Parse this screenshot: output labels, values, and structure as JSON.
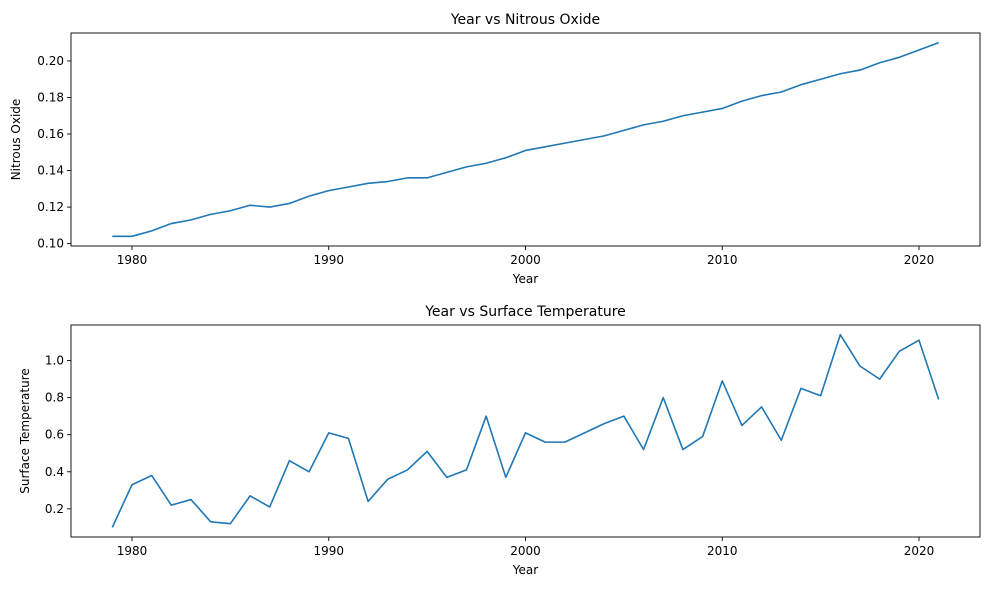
{
  "chart_data": [
    {
      "type": "line",
      "title": "Year vs Nitrous Oxide",
      "xlabel": "Year",
      "ylabel": "Nitrous Oxide",
      "xlim": [
        1976.9,
        2023.1
      ],
      "ylim": [
        0.0987,
        0.2153
      ],
      "xticks": [
        1980,
        1990,
        2000,
        2010,
        2020
      ],
      "yticks": [
        0.1,
        0.12,
        0.14,
        0.16,
        0.18,
        0.2
      ],
      "ytick_labels": [
        "0.10",
        "0.12",
        "0.14",
        "0.16",
        "0.18",
        "0.20"
      ],
      "grid": false,
      "color": "#1f77b4",
      "x": [
        1979,
        1980,
        1981,
        1982,
        1983,
        1984,
        1985,
        1986,
        1987,
        1988,
        1989,
        1990,
        1991,
        1992,
        1993,
        1994,
        1995,
        1996,
        1997,
        1998,
        1999,
        2000,
        2001,
        2002,
        2003,
        2004,
        2005,
        2006,
        2007,
        2008,
        2009,
        2010,
        2011,
        2012,
        2013,
        2014,
        2015,
        2016,
        2017,
        2018,
        2019,
        2020,
        2021
      ],
      "y": [
        0.104,
        0.104,
        0.107,
        0.111,
        0.113,
        0.116,
        0.118,
        0.121,
        0.12,
        0.122,
        0.126,
        0.129,
        0.131,
        0.133,
        0.134,
        0.136,
        0.136,
        0.139,
        0.142,
        0.144,
        0.147,
        0.151,
        0.153,
        0.155,
        0.157,
        0.159,
        0.162,
        0.165,
        0.167,
        0.17,
        0.172,
        0.174,
        0.178,
        0.181,
        0.183,
        0.187,
        0.19,
        0.193,
        0.195,
        0.199,
        0.202,
        0.206,
        0.21
      ]
    },
    {
      "type": "line",
      "title": "Year vs Surface Temperature",
      "xlabel": "Year",
      "ylabel": "Surface Temperature",
      "xlim": [
        1976.9,
        2023.1
      ],
      "ylim": [
        0.048,
        1.192
      ],
      "xticks": [
        1980,
        1990,
        2000,
        2010,
        2020
      ],
      "yticks": [
        0.2,
        0.4,
        0.6,
        0.8,
        1.0
      ],
      "ytick_labels": [
        "0.2",
        "0.4",
        "0.6",
        "0.8",
        "1.0"
      ],
      "grid": false,
      "color": "#1f77b4",
      "x": [
        1979,
        1980,
        1981,
        1982,
        1983,
        1984,
        1985,
        1986,
        1987,
        1988,
        1989,
        1990,
        1991,
        1992,
        1993,
        1994,
        1995,
        1996,
        1997,
        1998,
        1999,
        2000,
        2001,
        2002,
        2003,
        2004,
        2005,
        2006,
        2007,
        2008,
        2009,
        2010,
        2011,
        2012,
        2013,
        2014,
        2015,
        2016,
        2017,
        2018,
        2019,
        2020,
        2021
      ],
      "y": [
        0.1,
        0.33,
        0.38,
        0.22,
        0.25,
        0.13,
        0.12,
        0.27,
        0.21,
        0.46,
        0.4,
        0.61,
        0.58,
        0.24,
        0.36,
        0.41,
        0.51,
        0.37,
        0.41,
        0.7,
        0.37,
        0.61,
        0.56,
        0.56,
        0.61,
        0.66,
        0.7,
        0.52,
        0.8,
        0.52,
        0.59,
        0.89,
        0.65,
        0.75,
        0.57,
        0.85,
        0.81,
        1.14,
        0.97,
        0.9,
        1.05,
        1.11,
        0.79
      ]
    }
  ]
}
